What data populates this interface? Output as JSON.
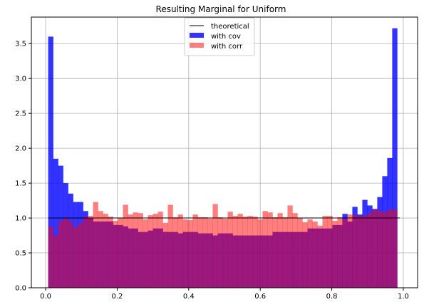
{
  "chart_data": {
    "type": "bar",
    "title": "Resulting Marginal for Uniform",
    "xlim": [
      -0.04,
      1.04
    ],
    "ylim": [
      0,
      3.88
    ],
    "xticks": [
      0.0,
      0.2,
      0.4,
      0.6,
      0.8,
      1.0
    ],
    "xtick_labels": [
      "0.0",
      "0.2",
      "0.4",
      "0.6",
      "0.8",
      "1.0"
    ],
    "yticks": [
      0.0,
      0.5,
      1.0,
      1.5,
      2.0,
      2.5,
      3.0,
      3.5
    ],
    "ytick_labels": [
      "0.0",
      "0.5",
      "1.0",
      "1.5",
      "2.0",
      "2.5",
      "3.0",
      "3.5"
    ],
    "grid": true,
    "legend_position": "top-center",
    "bins": {
      "start": 0.007,
      "end": 0.983,
      "count": 70
    },
    "theoretical": {
      "name": "theoretical",
      "x": [
        0.0,
        1.0
      ],
      "y": [
        1.0,
        1.0
      ],
      "color": "#000000"
    },
    "series": [
      {
        "name": "with cov",
        "color": "#0000ff",
        "opacity": 0.8,
        "values": [
          3.6,
          1.85,
          1.75,
          1.5,
          1.35,
          1.23,
          1.23,
          1.1,
          1.0,
          0.95,
          0.95,
          0.95,
          0.95,
          0.9,
          0.9,
          0.88,
          0.85,
          0.85,
          0.8,
          0.8,
          0.82,
          0.85,
          0.85,
          0.8,
          0.8,
          0.8,
          0.78,
          0.8,
          0.8,
          0.8,
          0.78,
          0.78,
          0.78,
          0.75,
          0.78,
          0.78,
          0.78,
          0.75,
          0.75,
          0.75,
          0.75,
          0.75,
          0.75,
          0.75,
          0.75,
          0.8,
          0.8,
          0.8,
          0.8,
          0.8,
          0.8,
          0.8,
          0.85,
          0.85,
          0.85,
          0.85,
          0.85,
          0.9,
          0.9,
          1.06,
          0.95,
          1.16,
          1.05,
          1.26,
          1.18,
          1.13,
          1.3,
          1.6,
          1.86,
          3.72
        ]
      },
      {
        "name": "with corr",
        "color": "#ff0000",
        "opacity": 0.5,
        "values": [
          0.88,
          0.75,
          0.95,
          1.0,
          0.95,
          0.87,
          0.93,
          1.02,
          1.03,
          1.23,
          1.1,
          1.06,
          1.02,
          0.96,
          1.0,
          1.19,
          1.05,
          1.08,
          1.07,
          0.98,
          1.04,
          1.06,
          1.09,
          0.93,
          1.19,
          1.01,
          1.05,
          0.98,
          0.97,
          1.05,
          1.01,
          1.01,
          0.99,
          1.2,
          1.01,
          0.99,
          1.09,
          1.03,
          1.06,
          1.02,
          1.03,
          1.02,
          0.98,
          1.1,
          1.08,
          1.01,
          1.07,
          1.01,
          1.18,
          1.07,
          1.0,
          0.94,
          0.98,
          0.95,
          0.89,
          1.03,
          1.03,
          0.96,
          1.01,
          0.98,
          1.05,
          1.04,
          1.03,
          1.03,
          1.07,
          1.12,
          1.1,
          1.08,
          1.12,
          1.12
        ]
      }
    ]
  }
}
